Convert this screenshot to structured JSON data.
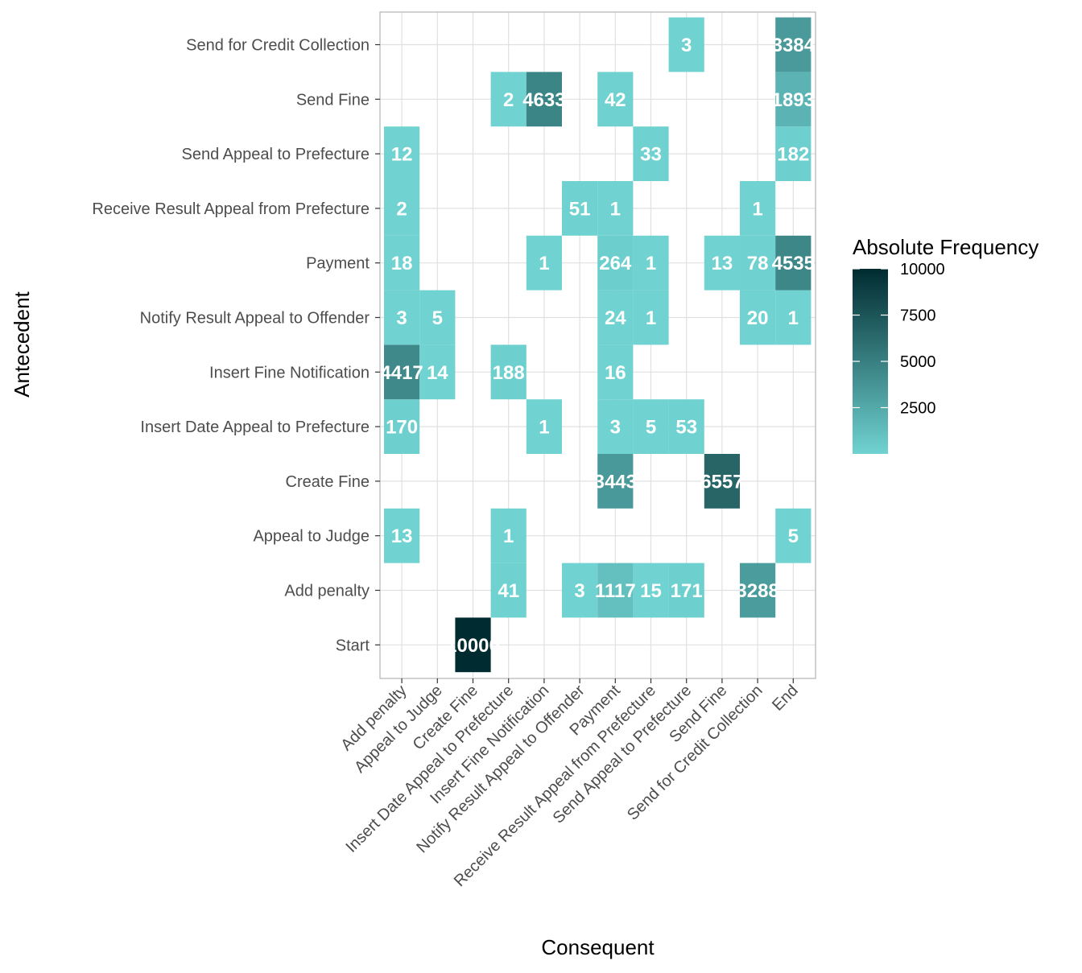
{
  "chart_data": {
    "type": "heatmap",
    "xlabel": "Consequent",
    "ylabel": "Antecedent",
    "x_categories": [
      "Add penalty",
      "Appeal to Judge",
      "Create Fine",
      "Insert Date Appeal to Prefecture",
      "Insert Fine Notification",
      "Notify Result Appeal to Offender",
      "Payment",
      "Receive Result Appeal from Prefecture",
      "Send Appeal to Prefecture",
      "Send Fine",
      "Send for Credit Collection",
      "End"
    ],
    "y_categories": [
      "Start",
      "Add penalty",
      "Appeal to Judge",
      "Create Fine",
      "Insert Date Appeal to Prefecture",
      "Insert Fine Notification",
      "Notify Result Appeal to Offender",
      "Payment",
      "Receive Result Appeal from Prefecture",
      "Send Appeal to Prefecture",
      "Send Fine",
      "Send for Credit Collection"
    ],
    "cells": [
      {
        "x": "Create Fine",
        "y": "Start",
        "value": 10000,
        "label": "10000"
      },
      {
        "x": "Insert Date Appeal to Prefecture",
        "y": "Add penalty",
        "value": 41,
        "label": "41"
      },
      {
        "x": "Notify Result Appeal to Offender",
        "y": "Add penalty",
        "value": 3,
        "label": "3"
      },
      {
        "x": "Payment",
        "y": "Add penalty",
        "value": 1117,
        "label": "1117"
      },
      {
        "x": "Receive Result Appeal from Prefecture",
        "y": "Add penalty",
        "value": 15,
        "label": "15"
      },
      {
        "x": "Send Appeal to Prefecture",
        "y": "Add penalty",
        "value": 171,
        "label": "171"
      },
      {
        "x": "Send for Credit Collection",
        "y": "Add penalty",
        "value": 3288,
        "label": "3288"
      },
      {
        "x": "Add penalty",
        "y": "Appeal to Judge",
        "value": 13,
        "label": "13"
      },
      {
        "x": "Insert Date Appeal to Prefecture",
        "y": "Appeal to Judge",
        "value": 1,
        "label": "1"
      },
      {
        "x": "End",
        "y": "Appeal to Judge",
        "value": 5,
        "label": "5"
      },
      {
        "x": "Payment",
        "y": "Create Fine",
        "value": 3443,
        "label": "3443"
      },
      {
        "x": "Send Fine",
        "y": "Create Fine",
        "value": 6557,
        "label": "6557"
      },
      {
        "x": "Add penalty",
        "y": "Insert Date Appeal to Prefecture",
        "value": 170,
        "label": "170"
      },
      {
        "x": "Insert Fine Notification",
        "y": "Insert Date Appeal to Prefecture",
        "value": 1,
        "label": "1"
      },
      {
        "x": "Payment",
        "y": "Insert Date Appeal to Prefecture",
        "value": 3,
        "label": "3"
      },
      {
        "x": "Receive Result Appeal from Prefecture",
        "y": "Insert Date Appeal to Prefecture",
        "value": 5,
        "label": "5"
      },
      {
        "x": "Send Appeal to Prefecture",
        "y": "Insert Date Appeal to Prefecture",
        "value": 53,
        "label": "53"
      },
      {
        "x": "Add penalty",
        "y": "Insert Fine Notification",
        "value": 4417,
        "label": "4417"
      },
      {
        "x": "Appeal to Judge",
        "y": "Insert Fine Notification",
        "value": 14,
        "label": "14"
      },
      {
        "x": "Insert Date Appeal to Prefecture",
        "y": "Insert Fine Notification",
        "value": 188,
        "label": "188"
      },
      {
        "x": "Payment",
        "y": "Insert Fine Notification",
        "value": 16,
        "label": "16"
      },
      {
        "x": "Add penalty",
        "y": "Notify Result Appeal to Offender",
        "value": 3,
        "label": "3"
      },
      {
        "x": "Appeal to Judge",
        "y": "Notify Result Appeal to Offender",
        "value": 5,
        "label": "5"
      },
      {
        "x": "Payment",
        "y": "Notify Result Appeal to Offender",
        "value": 24,
        "label": "24"
      },
      {
        "x": "Receive Result Appeal from Prefecture",
        "y": "Notify Result Appeal to Offender",
        "value": 1,
        "label": "1"
      },
      {
        "x": "Send for Credit Collection",
        "y": "Notify Result Appeal to Offender",
        "value": 20,
        "label": "20"
      },
      {
        "x": "End",
        "y": "Notify Result Appeal to Offender",
        "value": 1,
        "label": "1"
      },
      {
        "x": "Add penalty",
        "y": "Payment",
        "value": 18,
        "label": "18"
      },
      {
        "x": "Insert Fine Notification",
        "y": "Payment",
        "value": 1,
        "label": "1"
      },
      {
        "x": "Payment",
        "y": "Payment",
        "value": 264,
        "label": "264"
      },
      {
        "x": "Receive Result Appeal from Prefecture",
        "y": "Payment",
        "value": 1,
        "label": "1"
      },
      {
        "x": "Send Fine",
        "y": "Payment",
        "value": 13,
        "label": "13"
      },
      {
        "x": "Send for Credit Collection",
        "y": "Payment",
        "value": 78,
        "label": "78"
      },
      {
        "x": "End",
        "y": "Payment",
        "value": 4535,
        "label": "4535"
      },
      {
        "x": "Add penalty",
        "y": "Receive Result Appeal from Prefecture",
        "value": 2,
        "label": "2"
      },
      {
        "x": "Notify Result Appeal to Offender",
        "y": "Receive Result Appeal from Prefecture",
        "value": 51,
        "label": "51"
      },
      {
        "x": "Payment",
        "y": "Receive Result Appeal from Prefecture",
        "value": 1,
        "label": "1"
      },
      {
        "x": "Send for Credit Collection",
        "y": "Receive Result Appeal from Prefecture",
        "value": 1,
        "label": "1"
      },
      {
        "x": "Add penalty",
        "y": "Send Appeal to Prefecture",
        "value": 12,
        "label": "12"
      },
      {
        "x": "Receive Result Appeal from Prefecture",
        "y": "Send Appeal to Prefecture",
        "value": 33,
        "label": "33"
      },
      {
        "x": "End",
        "y": "Send Appeal to Prefecture",
        "value": 182,
        "label": "182"
      },
      {
        "x": "Insert Date Appeal to Prefecture",
        "y": "Send Fine",
        "value": 2,
        "label": "2"
      },
      {
        "x": "Insert Fine Notification",
        "y": "Send Fine",
        "value": 4633,
        "label": "4633"
      },
      {
        "x": "Payment",
        "y": "Send Fine",
        "value": 42,
        "label": "42"
      },
      {
        "x": "End",
        "y": "Send Fine",
        "value": 1893,
        "label": "1893"
      },
      {
        "x": "Send Appeal to Prefecture",
        "y": "Send for Credit Collection",
        "value": 3,
        "label": "3"
      },
      {
        "x": "End",
        "y": "Send for Credit Collection",
        "value": 3384,
        "label": "3384"
      }
    ],
    "legend": {
      "title": "Absolute Frequency",
      "ticks": [
        2500,
        5000,
        7500,
        10000
      ],
      "tick_labels": [
        "2500",
        "5000",
        "7500",
        "10000"
      ],
      "range": [
        1,
        10000
      ],
      "placement": "right"
    },
    "colors": {
      "low": "#70d3d1",
      "high": "#002b30",
      "grid": "#e0e0e0",
      "panel_border": "#b3b3b3"
    },
    "grid": true
  }
}
